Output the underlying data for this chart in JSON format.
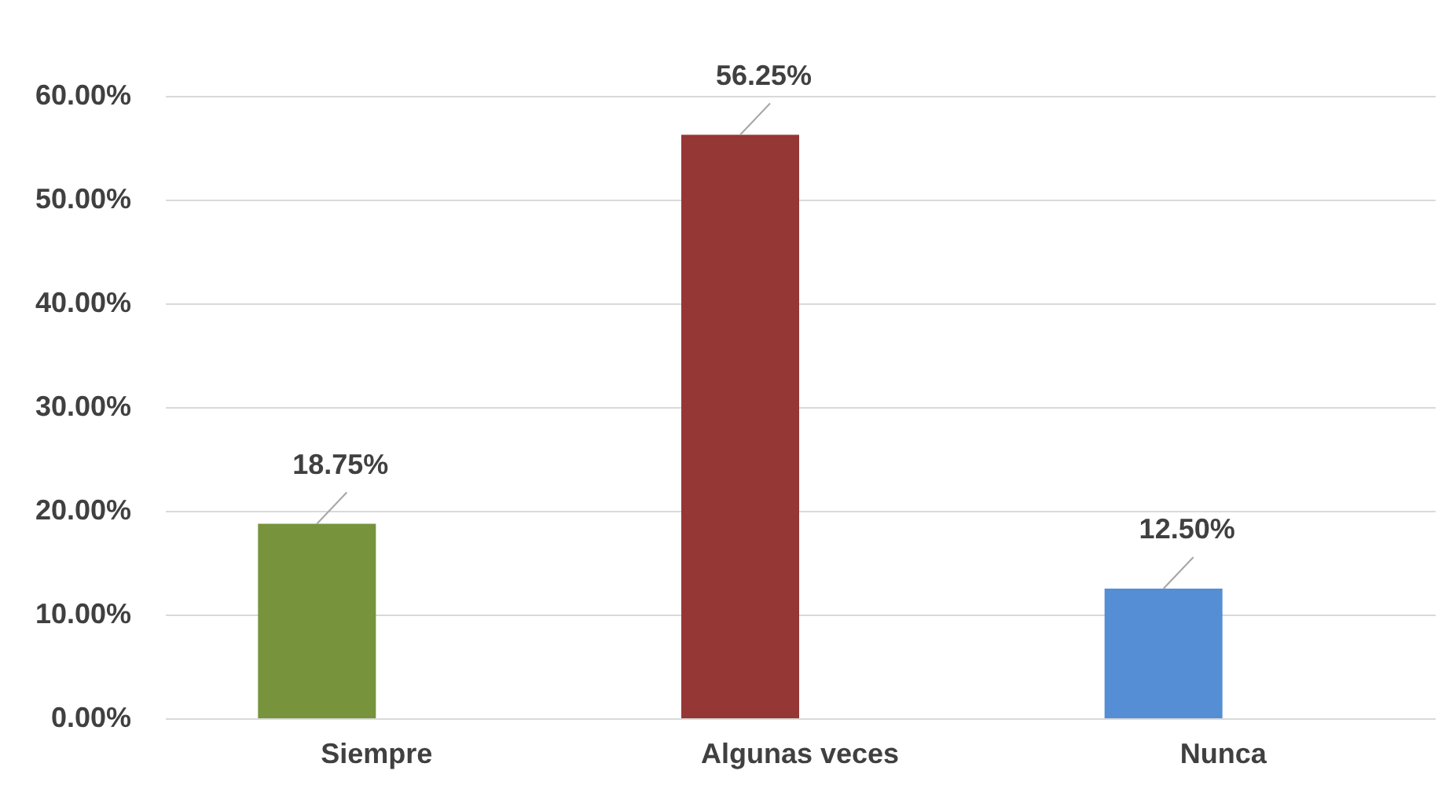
{
  "chart_data": {
    "type": "bar",
    "categories": [
      "Siempre",
      "Algunas veces",
      "Nunca"
    ],
    "values": [
      18.75,
      56.25,
      12.5
    ],
    "colors": [
      "#77933c",
      "#953735",
      "#558ed5"
    ],
    "value_labels": [
      "18.75%",
      "56.25%",
      "12.50%"
    ],
    "ylim": [
      0,
      60
    ],
    "yticks": [
      {
        "value": 0,
        "label": "0.00%"
      },
      {
        "value": 10,
        "label": "10.00%"
      },
      {
        "value": 20,
        "label": "20.00%"
      },
      {
        "value": 30,
        "label": "30.00%"
      },
      {
        "value": 40,
        "label": "40.00%"
      },
      {
        "value": 50,
        "label": "50.00%"
      },
      {
        "value": 60,
        "label": "60.00%"
      }
    ],
    "grid": "y"
  }
}
